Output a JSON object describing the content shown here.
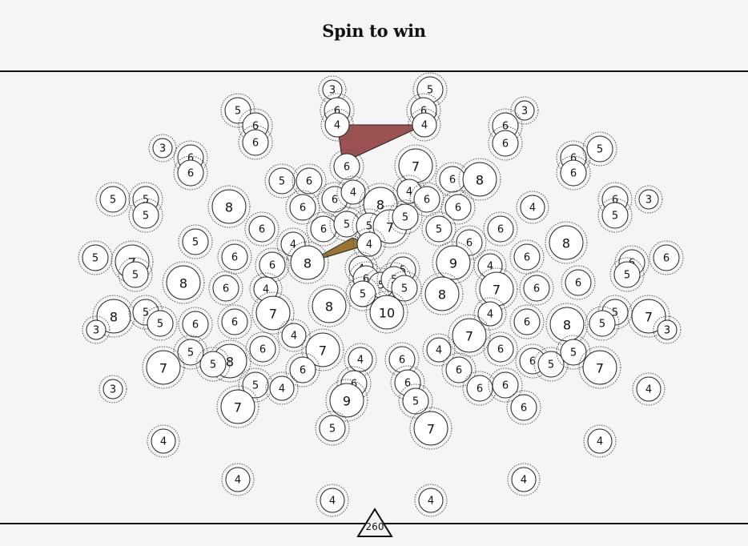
{
  "title": "Spin to win",
  "shooter": {
    "value": "260"
  },
  "colors": {
    "background": "#f6f5f5",
    "disc_fill": "#ffffff",
    "disc_stroke": "#222222",
    "ring_stroke": "#555555",
    "blade_dark": "#9c5253",
    "blade_gold": "#9c7433"
  },
  "discs": [
    {
      "v": "3",
      "p": [
        415,
        112
      ]
    },
    {
      "v": "5",
      "p": [
        537,
        112
      ]
    },
    {
      "v": "6",
      "p": [
        421,
        138
      ]
    },
    {
      "v": "6",
      "p": [
        529,
        138
      ]
    },
    {
      "v": "4",
      "p": [
        421,
        156
      ]
    },
    {
      "v": "4",
      "p": [
        530,
        156
      ]
    },
    {
      "v": "5",
      "p": [
        297,
        138
      ]
    },
    {
      "v": "6",
      "p": [
        319,
        157
      ]
    },
    {
      "v": "6",
      "p": [
        319,
        178
      ]
    },
    {
      "v": "3",
      "p": [
        655,
        138
      ]
    },
    {
      "v": "6",
      "p": [
        631,
        157
      ]
    },
    {
      "v": "6",
      "p": [
        631,
        179
      ]
    },
    {
      "v": "3",
      "p": [
        203,
        185
      ]
    },
    {
      "v": "6",
      "p": [
        238,
        197
      ]
    },
    {
      "v": "6",
      "p": [
        238,
        216
      ]
    },
    {
      "v": "6",
      "p": [
        716,
        197
      ]
    },
    {
      "v": "5",
      "p": [
        749,
        186
      ]
    },
    {
      "v": "6",
      "p": [
        716,
        216
      ]
    },
    {
      "v": "6",
      "p": [
        433,
        208
      ]
    },
    {
      "v": "7",
      "p": [
        519,
        207
      ]
    },
    {
      "v": "5",
      "p": [
        352,
        226
      ]
    },
    {
      "v": "6",
      "p": [
        386,
        226
      ]
    },
    {
      "v": "6",
      "p": [
        565,
        224
      ]
    },
    {
      "v": "8",
      "p": [
        599,
        224
      ]
    },
    {
      "v": "5",
      "p": [
        141,
        249
      ]
    },
    {
      "v": "5",
      "p": [
        182,
        249
      ]
    },
    {
      "v": "5",
      "p": [
        182,
        269
      ]
    },
    {
      "v": "8",
      "p": [
        286,
        258
      ]
    },
    {
      "v": "6",
      "p": [
        378,
        259
      ]
    },
    {
      "v": "6",
      "p": [
        418,
        249
      ]
    },
    {
      "v": "4",
      "p": [
        441,
        240
      ]
    },
    {
      "v": "8",
      "p": [
        475,
        255
      ]
    },
    {
      "v": "4",
      "p": [
        511,
        239
      ]
    },
    {
      "v": "6",
      "p": [
        533,
        249
      ]
    },
    {
      "v": "6",
      "p": [
        572,
        259
      ]
    },
    {
      "v": "4",
      "p": [
        665,
        259
      ]
    },
    {
      "v": "6",
      "p": [
        768,
        249
      ]
    },
    {
      "v": "3",
      "p": [
        810,
        249
      ]
    },
    {
      "v": "5",
      "p": [
        768,
        269
      ]
    },
    {
      "v": "6",
      "p": [
        327,
        286
      ]
    },
    {
      "v": "6",
      "p": [
        404,
        286
      ]
    },
    {
      "v": "5",
      "p": [
        433,
        280
      ]
    },
    {
      "v": "5",
      "p": [
        461,
        282
      ]
    },
    {
      "v": "7",
      "p": [
        487,
        283
      ]
    },
    {
      "v": "5",
      "p": [
        506,
        271
      ]
    },
    {
      "v": "5",
      "p": [
        548,
        286
      ]
    },
    {
      "v": "6",
      "p": [
        625,
        286
      ]
    },
    {
      "v": "5",
      "p": [
        244,
        302
      ]
    },
    {
      "v": "4",
      "p": [
        366,
        305
      ]
    },
    {
      "v": "4",
      "p": [
        461,
        305
      ]
    },
    {
      "v": "6",
      "p": [
        586,
        303
      ]
    },
    {
      "v": "8",
      "p": [
        707,
        303
      ]
    },
    {
      "v": "5",
      "p": [
        119,
        322
      ]
    },
    {
      "v": "7",
      "p": [
        165,
        327
      ]
    },
    {
      "v": "5",
      "p": [
        169,
        343
      ]
    },
    {
      "v": "6",
      "p": [
        293,
        321
      ]
    },
    {
      "v": "6",
      "p": [
        340,
        331
      ]
    },
    {
      "v": "8",
      "p": [
        384,
        328
      ]
    },
    {
      "v": "4",
      "p": [
        451,
        335
      ]
    },
    {
      "v": "5",
      "p": [
        503,
        337
      ]
    },
    {
      "v": "9",
      "p": [
        566,
        328
      ]
    },
    {
      "v": "4",
      "p": [
        612,
        332
      ]
    },
    {
      "v": "6",
      "p": [
        658,
        321
      ]
    },
    {
      "v": "6",
      "p": [
        789,
        328
      ]
    },
    {
      "v": "6",
      "p": [
        832,
        322
      ]
    },
    {
      "v": "5",
      "p": [
        783,
        343
      ]
    },
    {
      "v": "8",
      "p": [
        229,
        353
      ]
    },
    {
      "v": "6",
      "p": [
        282,
        360
      ]
    },
    {
      "v": "4",
      "p": [
        332,
        361
      ]
    },
    {
      "v": "6",
      "p": [
        457,
        348
      ]
    },
    {
      "v": "5",
      "p": [
        476,
        356
      ]
    },
    {
      "v": "5",
      "p": [
        492,
        349
      ]
    },
    {
      "v": "5",
      "p": [
        505,
        360
      ]
    },
    {
      "v": "7",
      "p": [
        620,
        361
      ]
    },
    {
      "v": "6",
      "p": [
        670,
        360
      ]
    },
    {
      "v": "6",
      "p": [
        722,
        353
      ]
    },
    {
      "v": "8",
      "p": [
        142,
        395
      ]
    },
    {
      "v": "5",
      "p": [
        182,
        390
      ]
    },
    {
      "v": "5",
      "p": [
        200,
        404
      ]
    },
    {
      "v": "3",
      "p": [
        120,
        412
      ]
    },
    {
      "v": "7",
      "p": [
        341,
        391
      ]
    },
    {
      "v": "8",
      "p": [
        411,
        382
      ]
    },
    {
      "v": "5",
      "p": [
        453,
        367
      ]
    },
    {
      "v": "10",
      "p": [
        483,
        390
      ]
    },
    {
      "v": "8",
      "p": [
        552,
        367
      ]
    },
    {
      "v": "4",
      "p": [
        612,
        392
      ]
    },
    {
      "v": "6",
      "p": [
        658,
        402
      ]
    },
    {
      "v": "8",
      "p": [
        708,
        405
      ]
    },
    {
      "v": "5",
      "p": [
        768,
        390
      ]
    },
    {
      "v": "5",
      "p": [
        752,
        404
      ]
    },
    {
      "v": "7",
      "p": [
        810,
        395
      ]
    },
    {
      "v": "3",
      "p": [
        833,
        412
      ]
    },
    {
      "v": "6",
      "p": [
        244,
        405
      ]
    },
    {
      "v": "6",
      "p": [
        293,
        402
      ]
    },
    {
      "v": "4",
      "p": [
        367,
        419
      ]
    },
    {
      "v": "7",
      "p": [
        586,
        419
      ]
    },
    {
      "v": "6",
      "p": [
        328,
        436
      ]
    },
    {
      "v": "7",
      "p": [
        403,
        437
      ]
    },
    {
      "v": "4",
      "p": [
        548,
        437
      ]
    },
    {
      "v": "6",
      "p": [
        625,
        436
      ]
    },
    {
      "v": "5",
      "p": [
        238,
        440
      ]
    },
    {
      "v": "8",
      "p": [
        287,
        451
      ]
    },
    {
      "v": "5",
      "p": [
        266,
        455
      ]
    },
    {
      "v": "6",
      "p": [
        502,
        449
      ]
    },
    {
      "v": "4",
      "p": [
        450,
        449
      ]
    },
    {
      "v": "6",
      "p": [
        665,
        451
      ]
    },
    {
      "v": "5",
      "p": [
        688,
        455
      ]
    },
    {
      "v": "5",
      "p": [
        716,
        440
      ]
    },
    {
      "v": "7",
      "p": [
        204,
        459
      ]
    },
    {
      "v": "6",
      "p": [
        378,
        462
      ]
    },
    {
      "v": "6",
      "p": [
        573,
        462
      ]
    },
    {
      "v": "7",
      "p": [
        749,
        459
      ]
    },
    {
      "v": "3",
      "p": [
        141,
        486
      ]
    },
    {
      "v": "5",
      "p": [
        319,
        481
      ]
    },
    {
      "v": "4",
      "p": [
        352,
        485
      ]
    },
    {
      "v": "6",
      "p": [
        442,
        479
      ]
    },
    {
      "v": "6",
      "p": [
        509,
        478
      ]
    },
    {
      "v": "6",
      "p": [
        599,
        485
      ]
    },
    {
      "v": "6",
      "p": [
        631,
        481
      ]
    },
    {
      "v": "4",
      "p": [
        810,
        486
      ]
    },
    {
      "v": "7",
      "p": [
        297,
        508
      ]
    },
    {
      "v": "9",
      "p": [
        433,
        500
      ]
    },
    {
      "v": "5",
      "p": [
        519,
        501
      ]
    },
    {
      "v": "6",
      "p": [
        654,
        509
      ]
    },
    {
      "v": "5",
      "p": [
        415,
        535
      ]
    },
    {
      "v": "7",
      "p": [
        538,
        535
      ]
    },
    {
      "v": "4",
      "p": [
        204,
        551
      ]
    },
    {
      "v": "4",
      "p": [
        749,
        551
      ]
    },
    {
      "v": "4",
      "p": [
        297,
        599
      ]
    },
    {
      "v": "4",
      "p": [
        654,
        599
      ]
    },
    {
      "v": "4",
      "p": [
        415,
        625
      ]
    },
    {
      "v": "4",
      "p": [
        538,
        625
      ]
    }
  ]
}
